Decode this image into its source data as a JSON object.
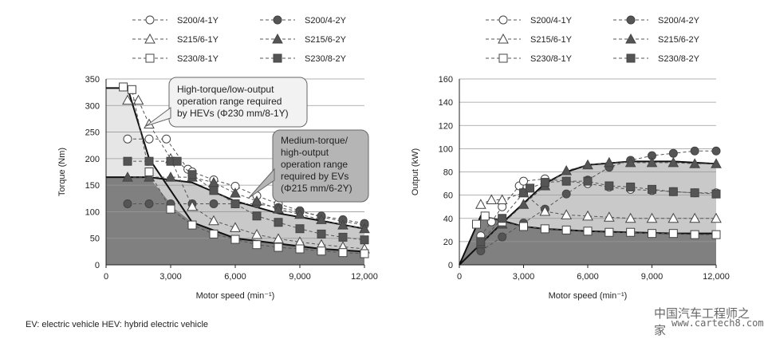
{
  "footnote": "EV: electric vehicle   HEV: hybrid electric vehicle",
  "watermark": {
    "line1": "中国汽车工程师之家",
    "line2": "www.cartech8.com"
  },
  "legend_entries": [
    "S200/4-1Y",
    "S200/4-2Y",
    "S215/6-1Y",
    "S215/6-2Y",
    "S230/8-1Y",
    "S230/8-2Y"
  ],
  "chart_data": [
    {
      "type": "line",
      "title": "",
      "xlabel": "Motor speed (min⁻¹)",
      "ylabel": "Torque (Nm)",
      "xlim": [
        0,
        12000
      ],
      "ylim": [
        0,
        350
      ],
      "xticks": [
        "0",
        "3,000",
        "6,000",
        "9,000",
        "12,000"
      ],
      "yticks": [
        "0",
        "50",
        "100",
        "150",
        "200",
        "250",
        "300",
        "350"
      ],
      "grid": "horizontal",
      "annotations": [
        {
          "text": "High-torque/low-output operation range required by HEVs (Φ230 mm/8-1Y)"
        },
        {
          "text": "Medium-torque/ high-output operation range required by EVs (Φ215 mm/6-2Y)"
        }
      ],
      "envelopes": [
        {
          "name": "HEV range",
          "x": [
            0,
            1000,
            2000,
            4000,
            6000,
            8000,
            10000,
            12000
          ],
          "y": [
            333,
            333,
            200,
            80,
            50,
            40,
            30,
            25
          ]
        },
        {
          "name": "EV range",
          "x": [
            0,
            2000,
            4000,
            6000,
            8000,
            10000,
            12000
          ],
          "y": [
            165,
            165,
            155,
            120,
            97,
            83,
            68
          ]
        }
      ],
      "series": [
        {
          "name": "S200/4-1Y",
          "marker": "circle-open",
          "x": [
            1000,
            2000,
            2800,
            3800,
            4000,
            5000,
            6000,
            7000,
            8000,
            9000,
            10000,
            11000,
            12000
          ],
          "y": [
            237,
            237,
            237,
            180,
            175,
            160,
            148,
            130,
            115,
            102,
            90,
            82,
            75
          ]
        },
        {
          "name": "S200/4-2Y",
          "marker": "circle-filled",
          "x": [
            1000,
            2000,
            3000,
            4000,
            5000,
            6000,
            7000,
            8000,
            9000,
            10000,
            11000,
            12000
          ],
          "y": [
            115,
            115,
            115,
            115,
            115,
            115,
            115,
            108,
            100,
            92,
            85,
            78
          ]
        },
        {
          "name": "S215/6-1Y",
          "marker": "triangle-open",
          "x": [
            1000,
            1500,
            2000,
            3000,
            4000,
            5000,
            6000,
            7000,
            8000,
            9000,
            10000,
            11000,
            12000
          ],
          "y": [
            310,
            310,
            265,
            200,
            110,
            83,
            70,
            57,
            49,
            43,
            38,
            34,
            30
          ]
        },
        {
          "name": "S215/6-2Y",
          "marker": "triangle-filled",
          "x": [
            1000,
            2000,
            3000,
            4000,
            5000,
            6000,
            7000,
            8000,
            9000,
            10000,
            11000,
            12000
          ],
          "y": [
            165,
            165,
            165,
            165,
            155,
            135,
            120,
            105,
            95,
            85,
            75,
            68
          ]
        },
        {
          "name": "S230/8-1Y",
          "marker": "square-open",
          "x": [
            800,
            1200,
            2000,
            3000,
            4000,
            5000,
            6000,
            7000,
            8000,
            9000,
            10000,
            11000,
            12000
          ],
          "y": [
            335,
            330,
            175,
            105,
            75,
            58,
            48,
            38,
            33,
            30,
            26,
            23,
            21
          ]
        },
        {
          "name": "S230/8-2Y",
          "marker": "square-filled",
          "x": [
            1000,
            2000,
            3000,
            3300,
            4000,
            5000,
            6000,
            7000,
            8000,
            9000,
            10000,
            11000,
            12000
          ],
          "y": [
            195,
            195,
            195,
            195,
            170,
            140,
            115,
            92,
            80,
            68,
            58,
            52,
            47
          ]
        }
      ]
    },
    {
      "type": "line",
      "title": "",
      "xlabel": "Motor speed (min⁻¹)",
      "ylabel": "Output (kW)",
      "xlim": [
        0,
        12000
      ],
      "ylim": [
        0,
        160
      ],
      "xticks": [
        "0",
        "3,000",
        "6,000",
        "9,000",
        "12,000"
      ],
      "yticks": [
        "0",
        "20",
        "40",
        "60",
        "80",
        "100",
        "120",
        "140",
        "160"
      ],
      "grid": "horizontal",
      "envelopes": [
        {
          "name": "HEV range",
          "x": [
            0,
            1000,
            2000,
            3000,
            4000,
            6000,
            8000,
            10000,
            12000
          ],
          "y": [
            0,
            42,
            38,
            33,
            31,
            29,
            28,
            27,
            27
          ]
        },
        {
          "name": "EV range",
          "x": [
            0,
            2000,
            4000,
            5000,
            6000,
            8000,
            10000,
            12000
          ],
          "y": [
            0,
            36,
            70,
            80,
            86,
            89,
            89,
            87
          ]
        }
      ],
      "series": [
        {
          "name": "S200/4-1Y",
          "marker": "circle-open",
          "x": [
            1000,
            1500,
            2000,
            2800,
            3000,
            4000,
            5000,
            6000,
            7000,
            8000,
            9000,
            10000,
            11000,
            12000
          ],
          "y": [
            25,
            37,
            50,
            68,
            72,
            74,
            72,
            70,
            67,
            65,
            64,
            63,
            62,
            62
          ]
        },
        {
          "name": "S200/4-2Y",
          "marker": "circle-filled",
          "x": [
            1000,
            2000,
            3000,
            4000,
            5000,
            6000,
            7000,
            8000,
            9000,
            10000,
            11000,
            12000
          ],
          "y": [
            12,
            24,
            36,
            48,
            61,
            73,
            84,
            90,
            94,
            96,
            98,
            98
          ]
        },
        {
          "name": "S215/6-1Y",
          "marker": "triangle-open",
          "x": [
            1000,
            1500,
            2000,
            3000,
            4000,
            5000,
            6000,
            7000,
            8000,
            9000,
            10000,
            11000,
            12000
          ],
          "y": [
            52,
            56,
            56,
            62,
            46,
            43,
            42,
            41,
            40,
            40,
            40,
            40,
            40
          ]
        },
        {
          "name": "S215/6-2Y",
          "marker": "triangle-filled",
          "x": [
            1000,
            2000,
            3000,
            4000,
            5000,
            6000,
            7000,
            8000,
            9000,
            10000,
            11000,
            12000
          ],
          "y": [
            18,
            35,
            52,
            68,
            81,
            86,
            88,
            88,
            88,
            88,
            87,
            87
          ]
        },
        {
          "name": "S230/8-1Y",
          "marker": "square-open",
          "x": [
            800,
            1200,
            2000,
            3000,
            4000,
            5000,
            6000,
            7000,
            8000,
            9000,
            10000,
            11000,
            12000
          ],
          "y": [
            35,
            42,
            37,
            33,
            31,
            30,
            29,
            28,
            28,
            27,
            27,
            26,
            26
          ]
        },
        {
          "name": "S230/8-2Y",
          "marker": "square-filled",
          "x": [
            1000,
            2000,
            3000,
            3300,
            4000,
            5000,
            6000,
            7000,
            8000,
            9000,
            10000,
            11000,
            12000
          ],
          "y": [
            20,
            40,
            62,
            66,
            71,
            72,
            72,
            68,
            67,
            65,
            63,
            62,
            61
          ]
        }
      ]
    }
  ]
}
